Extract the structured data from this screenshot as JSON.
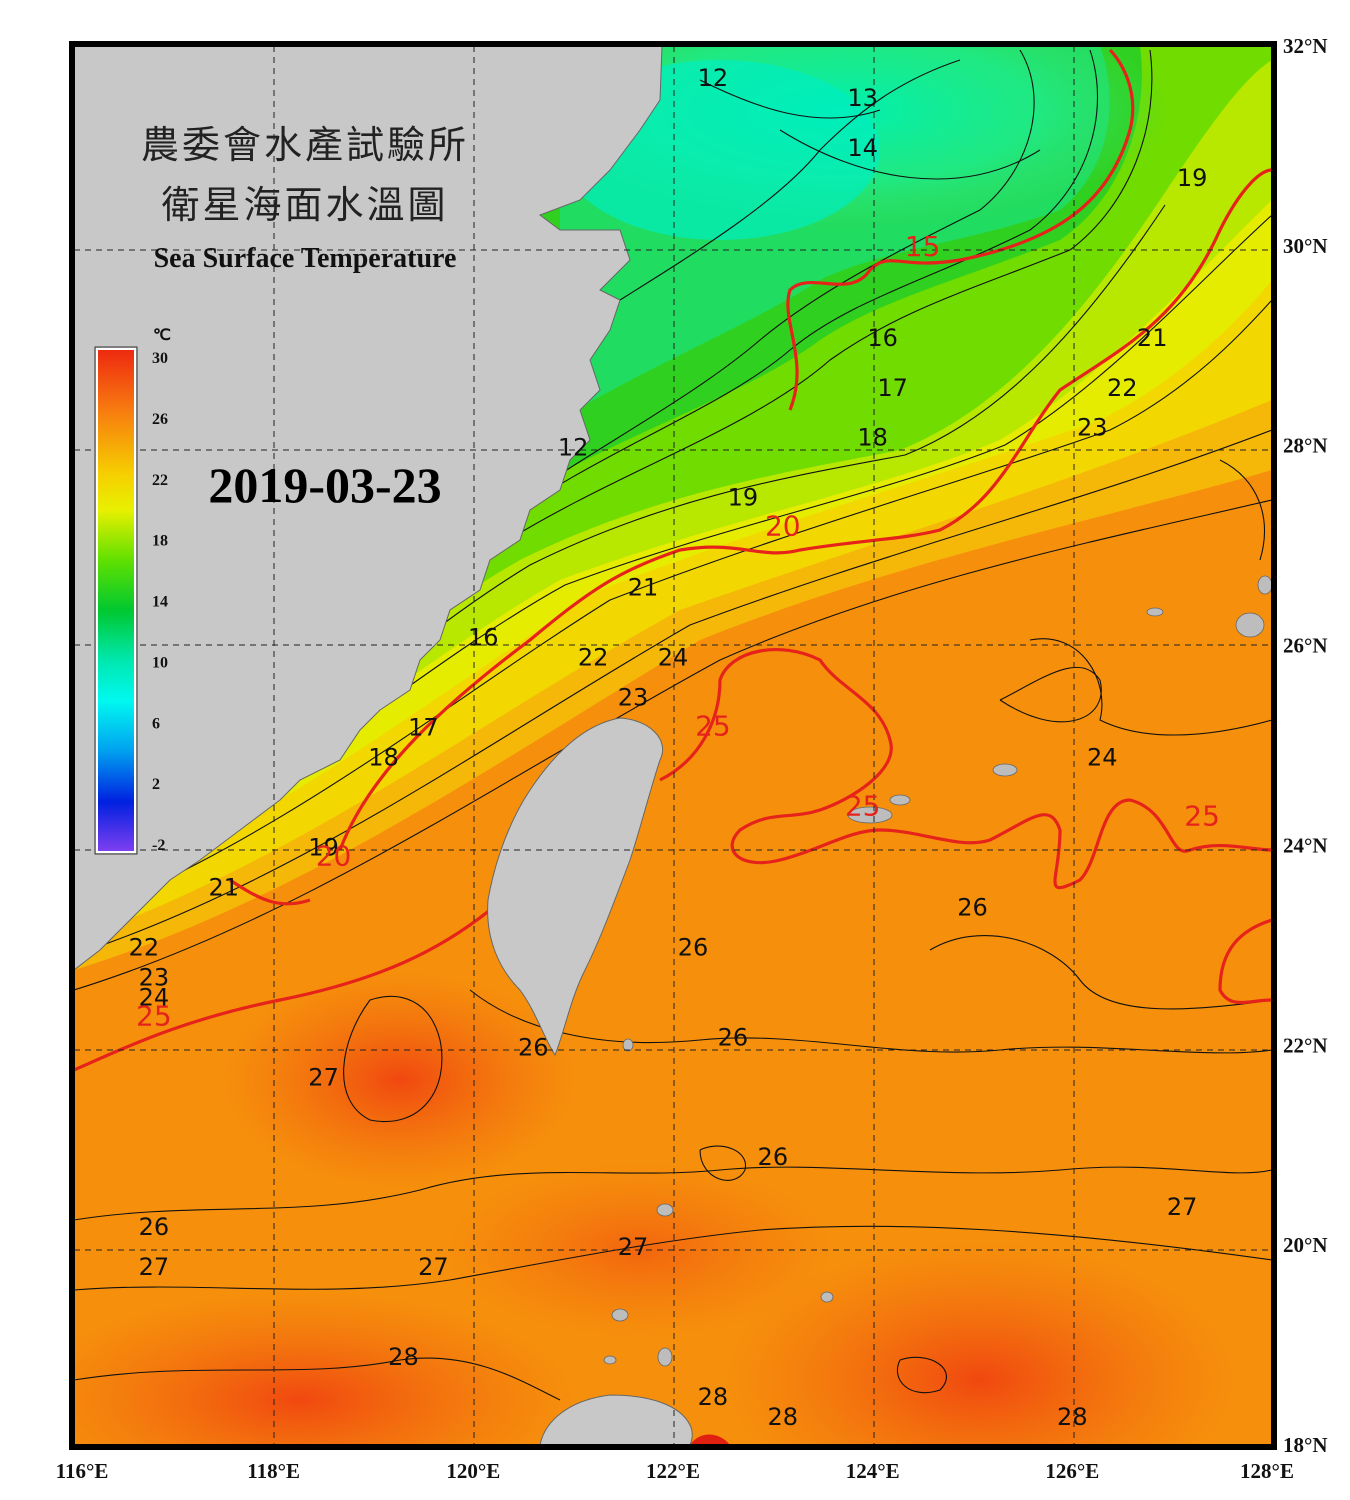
{
  "title": {
    "line1": "農委會水產試驗所",
    "line2": "衛星海面水溫圖",
    "english": "Sea Surface Temperature"
  },
  "date": "2019-03-23",
  "colorbar": {
    "unit": "℃",
    "ticks": [
      "30",
      "26",
      "22",
      "18",
      "14",
      "10",
      "6",
      "2",
      "-2"
    ],
    "min": -2,
    "max": 30
  },
  "axes": {
    "lat_labels": [
      "32°N",
      "30°N",
      "28°N",
      "26°N",
      "24°N",
      "22°N",
      "20°N",
      "18°N"
    ],
    "lon_labels": [
      "116°E",
      "118°E",
      "120°E",
      "122°E",
      "124°E",
      "126°E",
      "128°E"
    ],
    "lat_range": [
      18,
      32
    ],
    "lon_range": [
      116,
      128
    ],
    "grid": "dashed"
  },
  "contour_labels": [
    {
      "text": "12",
      "lon": 122.4,
      "lat": 31.6
    },
    {
      "text": "13",
      "lon": 123.9,
      "lat": 31.4
    },
    {
      "text": "14",
      "lon": 123.9,
      "lat": 30.9
    },
    {
      "text": "15",
      "lon": 124.5,
      "lat": 29.9,
      "highlight": true
    },
    {
      "text": "19",
      "lon": 127.2,
      "lat": 30.6
    },
    {
      "text": "16",
      "lon": 124.1,
      "lat": 29.0
    },
    {
      "text": "21",
      "lon": 126.8,
      "lat": 29.0
    },
    {
      "text": "17",
      "lon": 124.2,
      "lat": 28.5
    },
    {
      "text": "22",
      "lon": 126.5,
      "lat": 28.5
    },
    {
      "text": "18",
      "lon": 124.0,
      "lat": 28.0
    },
    {
      "text": "23",
      "lon": 126.2,
      "lat": 28.1
    },
    {
      "text": "12",
      "lon": 121.0,
      "lat": 27.9
    },
    {
      "text": "19",
      "lon": 122.7,
      "lat": 27.4
    },
    {
      "text": "20",
      "lon": 123.1,
      "lat": 27.1,
      "highlight": true
    },
    {
      "text": "21",
      "lon": 121.7,
      "lat": 26.5
    },
    {
      "text": "16",
      "lon": 120.1,
      "lat": 26.0
    },
    {
      "text": "22",
      "lon": 121.2,
      "lat": 25.8
    },
    {
      "text": "24",
      "lon": 122.0,
      "lat": 25.8
    },
    {
      "text": "23",
      "lon": 121.6,
      "lat": 25.4
    },
    {
      "text": "25",
      "lon": 122.4,
      "lat": 25.1,
      "highlight": true
    },
    {
      "text": "18",
      "lon": 119.1,
      "lat": 24.8
    },
    {
      "text": "17",
      "lon": 119.5,
      "lat": 25.1
    },
    {
      "text": "24",
      "lon": 126.3,
      "lat": 24.8
    },
    {
      "text": "25",
      "lon": 123.9,
      "lat": 24.3,
      "highlight": true
    },
    {
      "text": "25",
      "lon": 127.3,
      "lat": 24.2,
      "highlight": true
    },
    {
      "text": "19",
      "lon": 118.5,
      "lat": 23.9
    },
    {
      "text": "20",
      "lon": 118.6,
      "lat": 23.8,
      "highlight": true
    },
    {
      "text": "21",
      "lon": 117.5,
      "lat": 23.5
    },
    {
      "text": "26",
      "lon": 125.0,
      "lat": 23.3
    },
    {
      "text": "22",
      "lon": 116.7,
      "lat": 22.9
    },
    {
      "text": "26",
      "lon": 122.2,
      "lat": 22.9
    },
    {
      "text": "23",
      "lon": 116.8,
      "lat": 22.6
    },
    {
      "text": "24",
      "lon": 116.8,
      "lat": 22.4
    },
    {
      "text": "25",
      "lon": 116.8,
      "lat": 22.2,
      "highlight": true
    },
    {
      "text": "26",
      "lon": 120.6,
      "lat": 21.9
    },
    {
      "text": "26",
      "lon": 122.6,
      "lat": 22.0
    },
    {
      "text": "27",
      "lon": 118.5,
      "lat": 21.6
    },
    {
      "text": "26",
      "lon": 123.0,
      "lat": 20.8
    },
    {
      "text": "26",
      "lon": 116.8,
      "lat": 20.1
    },
    {
      "text": "27",
      "lon": 127.1,
      "lat": 20.3
    },
    {
      "text": "27",
      "lon": 121.6,
      "lat": 19.9
    },
    {
      "text": "27",
      "lon": 116.8,
      "lat": 19.7
    },
    {
      "text": "27",
      "lon": 119.6,
      "lat": 19.7
    },
    {
      "text": "28",
      "lon": 119.3,
      "lat": 18.8
    },
    {
      "text": "28",
      "lon": 122.4,
      "lat": 18.4
    },
    {
      "text": "28",
      "lon": 123.1,
      "lat": 18.2
    },
    {
      "text": "28",
      "lon": 126.0,
      "lat": 18.2
    }
  ]
}
